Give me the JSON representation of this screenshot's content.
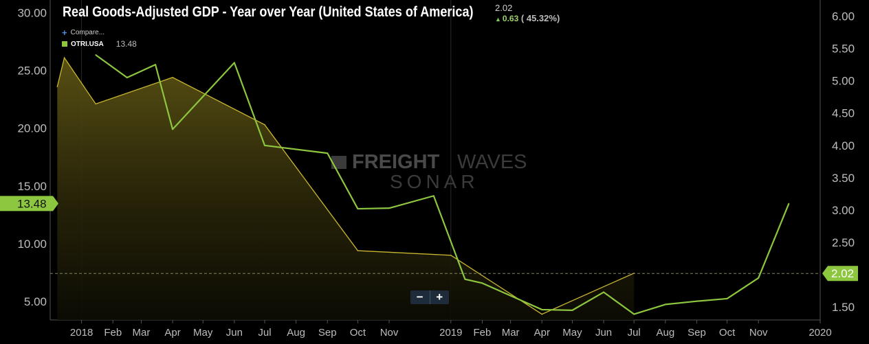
{
  "header": {
    "title": "Real Goods-Adjusted GDP - Year over Year (United States of America)",
    "last_value": "2.02",
    "change": "0.63",
    "change_pct": "( 45.32%)"
  },
  "legend": {
    "compare_label": "Compare...",
    "series_name": "OTRI.USA",
    "series_value": "13.48"
  },
  "watermark": {
    "line1_bold": "FREIGHT",
    "line1_light": "WAVES",
    "line2": "SONAR"
  },
  "zoom": {
    "minus": "−",
    "plus": "+"
  },
  "colors": {
    "otri": "#c9b531",
    "gdp": "#8dc63f",
    "background": "#000000"
  },
  "chart_data": {
    "type": "line",
    "x_tick_labels": [
      "2018",
      "Feb",
      "Mar",
      "Apr",
      "May",
      "Jun",
      "Jul",
      "Aug",
      "Sep",
      "Oct",
      "Nov",
      "2019",
      "Feb",
      "Mar",
      "Apr",
      "May",
      "Jun",
      "Jul",
      "Aug",
      "Sep",
      "Oct",
      "Nov",
      "2020"
    ],
    "left_axis": {
      "ticks": [
        5,
        10,
        15,
        20,
        25,
        30
      ],
      "tick_labels": [
        "5.00",
        "10.00",
        "15.00",
        "20.00",
        "25.00",
        "30.00"
      ],
      "ylim": [
        3.4,
        31.1
      ]
    },
    "right_axis": {
      "ticks": [
        1.5,
        2.0,
        2.5,
        3.0,
        3.5,
        4.0,
        4.5,
        5.0,
        5.5,
        6.0
      ],
      "tick_labels": [
        "1.50",
        "2.00",
        "2.50",
        "3.00",
        "3.50",
        "4.00",
        "4.50",
        "5.00",
        "5.50",
        "6.00"
      ],
      "ylim": [
        1.3,
        6.25
      ]
    },
    "series": [
      {
        "name": "OTRI.USA",
        "axis": "left",
        "style": "area",
        "x": [
          "2017-12-08",
          "2017-12-15",
          "2018-01-15",
          "2018-04-01",
          "2018-07-01",
          "2018-10-01",
          "2019-01-01",
          "2019-04-01",
          "2019-07-01"
        ],
        "values": [
          23.6,
          26.1,
          22.1,
          24.4,
          20.3,
          9.4,
          9.0,
          3.9,
          7.45
        ],
        "current_label": "13.48",
        "current_value": 13.48
      },
      {
        "name": "Real Goods-Adjusted GDP - Year over Year (United States of America)",
        "axis": "right",
        "style": "line",
        "x": [
          "2018-01-15",
          "2018-02-15",
          "2018-03-15",
          "2018-04-01",
          "2018-06-01",
          "2018-07-01",
          "2018-09-01",
          "2018-10-01",
          "2018-11-01",
          "2018-12-15",
          "2019-01-15",
          "2019-02-01",
          "2019-04-01",
          "2019-05-01",
          "2019-06-01",
          "2019-07-01",
          "2019-08-01",
          "2019-09-01",
          "2019-10-01",
          "2019-11-01",
          "2019-12-01"
        ],
        "values": [
          5.4,
          5.05,
          5.25,
          4.25,
          5.28,
          4.0,
          3.88,
          3.02,
          3.03,
          3.22,
          1.93,
          1.87,
          1.46,
          1.45,
          1.73,
          1.39,
          1.54,
          1.59,
          1.63,
          1.95,
          3.1
        ],
        "current_label": "2.02",
        "current_value": 2.02
      }
    ],
    "reference_line": {
      "axis": "right",
      "value": 2.02,
      "style": "dashed"
    },
    "grid": false
  }
}
